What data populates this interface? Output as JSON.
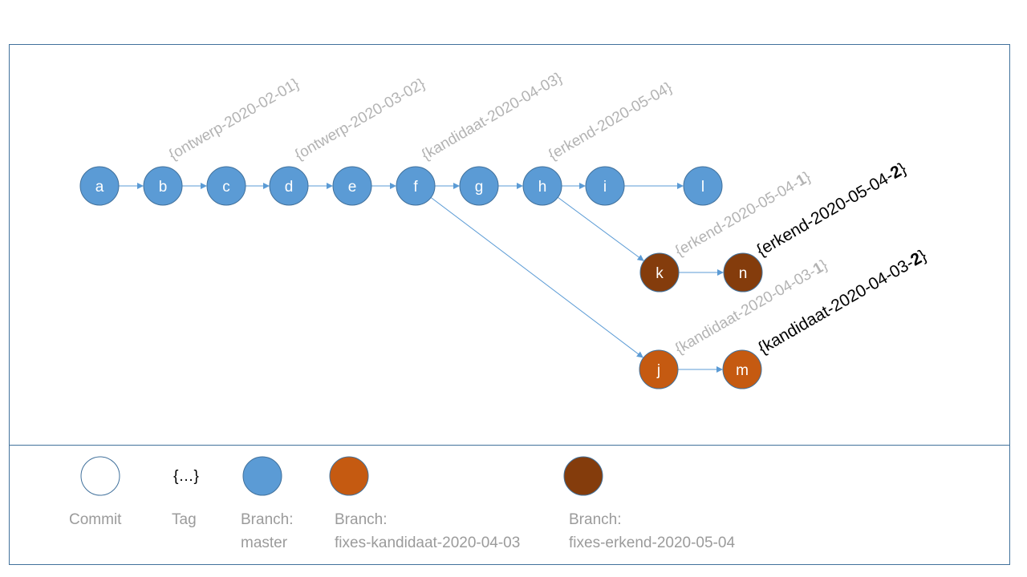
{
  "colors": {
    "master": "#5b9bd5",
    "kandidaat": "#c55a11",
    "erkend": "#843c0c",
    "edge": "#5b9bd5",
    "frame": "#41719c",
    "tag_grey": "#b3b3b3"
  },
  "nodes": [
    {
      "id": "a",
      "label": "a",
      "branch": "master"
    },
    {
      "id": "b",
      "label": "b",
      "branch": "master"
    },
    {
      "id": "c",
      "label": "c",
      "branch": "master"
    },
    {
      "id": "d",
      "label": "d",
      "branch": "master"
    },
    {
      "id": "e",
      "label": "e",
      "branch": "master"
    },
    {
      "id": "f",
      "label": "f",
      "branch": "master"
    },
    {
      "id": "g",
      "label": "g",
      "branch": "master"
    },
    {
      "id": "h",
      "label": "h",
      "branch": "master"
    },
    {
      "id": "i",
      "label": "i",
      "branch": "master"
    },
    {
      "id": "l",
      "label": "l",
      "branch": "master"
    },
    {
      "id": "k",
      "label": "k",
      "branch": "erkend"
    },
    {
      "id": "n",
      "label": "n",
      "branch": "erkend"
    },
    {
      "id": "j",
      "label": "j",
      "branch": "kandidaat"
    },
    {
      "id": "m",
      "label": "m",
      "branch": "kandidaat"
    }
  ],
  "edges": [
    {
      "from": "a",
      "to": "b"
    },
    {
      "from": "b",
      "to": "c"
    },
    {
      "from": "c",
      "to": "d"
    },
    {
      "from": "d",
      "to": "e"
    },
    {
      "from": "e",
      "to": "f"
    },
    {
      "from": "f",
      "to": "g"
    },
    {
      "from": "g",
      "to": "h"
    },
    {
      "from": "h",
      "to": "i"
    },
    {
      "from": "i",
      "to": "l"
    },
    {
      "from": "h",
      "to": "k"
    },
    {
      "from": "k",
      "to": "n"
    },
    {
      "from": "f",
      "to": "j"
    },
    {
      "from": "j",
      "to": "m"
    }
  ],
  "tags": [
    {
      "node": "b",
      "style": "grey",
      "parts": [
        {
          "text": "{ontwerp-2020-02-01}",
          "bold": false
        }
      ]
    },
    {
      "node": "d",
      "style": "grey",
      "parts": [
        {
          "text": "{ontwerp-2020-03-02}",
          "bold": false
        }
      ]
    },
    {
      "node": "f",
      "style": "grey",
      "parts": [
        {
          "text": "{kandidaat-2020-04-03}",
          "bold": false
        }
      ]
    },
    {
      "node": "h",
      "style": "grey",
      "parts": [
        {
          "text": "{erkend-2020-05-04}",
          "bold": false
        }
      ]
    },
    {
      "node": "k",
      "style": "grey",
      "parts": [
        {
          "text": "{erkend-2020-05-04-",
          "bold": false
        },
        {
          "text": "1",
          "bold": true
        },
        {
          "text": "}",
          "bold": false
        }
      ]
    },
    {
      "node": "n",
      "style": "black",
      "parts": [
        {
          "text": "{erkend-2020-05-04-",
          "bold": false
        },
        {
          "text": "2",
          "bold": true
        },
        {
          "text": "}",
          "bold": false
        }
      ]
    },
    {
      "node": "j",
      "style": "grey",
      "parts": [
        {
          "text": "{kandidaat-2020-04-03-",
          "bold": false
        },
        {
          "text": "1",
          "bold": true
        },
        {
          "text": "}",
          "bold": false
        }
      ]
    },
    {
      "node": "m",
      "style": "black",
      "parts": [
        {
          "text": "{kandidaat-2020-04-03-",
          "bold": false
        },
        {
          "text": "2",
          "bold": true
        },
        {
          "text": "}",
          "bold": false
        }
      ]
    }
  ],
  "legend": [
    {
      "id": "commit",
      "symbol": "circle-empty",
      "lines": [
        "Commit"
      ]
    },
    {
      "id": "tag",
      "symbol": "tag",
      "symbol_text": "{…}",
      "lines": [
        "Tag"
      ]
    },
    {
      "id": "master",
      "symbol": "circle",
      "branch": "master",
      "lines": [
        "Branch:",
        "master"
      ]
    },
    {
      "id": "kandidaat",
      "symbol": "circle",
      "branch": "kandidaat",
      "lines": [
        "Branch:",
        "fixes-kandidaat-2020-04-03"
      ]
    },
    {
      "id": "erkend",
      "symbol": "circle",
      "branch": "erkend",
      "lines": [
        "Branch:",
        "fixes-erkend-2020-05-04"
      ]
    }
  ]
}
